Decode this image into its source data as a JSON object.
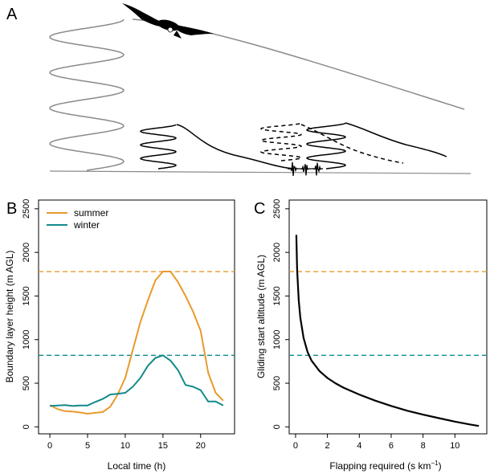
{
  "colors": {
    "summer": "#E89A2E",
    "winter": "#128A8A",
    "grey": "#8A8A8A",
    "black": "#000000"
  },
  "panels": {
    "a": {
      "letter": "A"
    },
    "b": {
      "letter": "B"
    },
    "c": {
      "letter": "C"
    }
  },
  "chart_data": [
    {
      "type": "diagram",
      "panel": "A",
      "description_elements": [
        "soaring-bird-icon",
        "thermal-spiral-grey",
        "glide-path-grey",
        "thermal-spirals-black",
        "glide-paths-black",
        "dashed-alternative-path",
        "flapping-oscillation"
      ]
    },
    {
      "type": "line",
      "panel": "B",
      "xlabel": "Local time (h)",
      "ylabel": "Boundary layer height (m AGL)",
      "xlim": [
        -1.5,
        24.5
      ],
      "ylim": [
        -80,
        2600
      ],
      "xticks": [
        0,
        5,
        10,
        15,
        20
      ],
      "yticks": [
        0,
        500,
        1000,
        1500,
        2000,
        2500
      ],
      "legend_position": "top-left",
      "series": [
        {
          "name": "summer",
          "color": "#E89A2E",
          "x": [
            0,
            1,
            2,
            3,
            4,
            5,
            6,
            7,
            8,
            9,
            10,
            11,
            12,
            13,
            14,
            15,
            16,
            17,
            18,
            19,
            20,
            21,
            22,
            23
          ],
          "y": [
            250,
            205,
            180,
            175,
            165,
            150,
            160,
            170,
            230,
            370,
            560,
            880,
            1200,
            1450,
            1680,
            1780,
            1780,
            1660,
            1500,
            1320,
            1100,
            620,
            390,
            300
          ]
        },
        {
          "name": "winter",
          "color": "#128A8A",
          "x": [
            0,
            1,
            2,
            3,
            4,
            5,
            6,
            7,
            8,
            9,
            10,
            11,
            12,
            13,
            14,
            15,
            16,
            17,
            18,
            19,
            20,
            21,
            22,
            23
          ],
          "y": [
            240,
            245,
            250,
            240,
            245,
            245,
            285,
            320,
            370,
            380,
            390,
            460,
            560,
            700,
            790,
            820,
            760,
            650,
            480,
            460,
            420,
            290,
            290,
            245
          ]
        }
      ],
      "reference_lines": [
        {
          "y": 1780,
          "color": "#E89A2E",
          "style": "dashed"
        },
        {
          "y": 820,
          "color": "#128A8A",
          "style": "dashed"
        }
      ]
    },
    {
      "type": "line",
      "panel": "C",
      "xlabel": "Flapping required (s km",
      "xlabel_superscript": "−1",
      "xlabel_suffix": ")",
      "ylabel": "Gliding start altitude (m AGL)",
      "xlim": [
        -0.4,
        12.0
      ],
      "ylim": [
        -80,
        2600
      ],
      "xticks": [
        0,
        2,
        4,
        6,
        8,
        10
      ],
      "yticks": [
        0,
        500,
        1000,
        1500,
        2000,
        2500
      ],
      "series": [
        {
          "name": "",
          "color": "#000000",
          "x": [
            0.05,
            0.1,
            0.2,
            0.3,
            0.5,
            0.75,
            1.0,
            1.5,
            2.0,
            2.5,
            3.0,
            4.0,
            5.0,
            6.0,
            7.0,
            8.0,
            9.0,
            10.0,
            11.0,
            11.5
          ],
          "y": [
            2200,
            1800,
            1450,
            1250,
            1020,
            860,
            760,
            640,
            560,
            500,
            450,
            370,
            300,
            240,
            185,
            140,
            100,
            60,
            25,
            10
          ]
        }
      ],
      "reference_lines": [
        {
          "y": 1780,
          "color": "#E89A2E",
          "style": "dashed"
        },
        {
          "y": 820,
          "color": "#128A8A",
          "style": "dashed"
        }
      ]
    }
  ]
}
